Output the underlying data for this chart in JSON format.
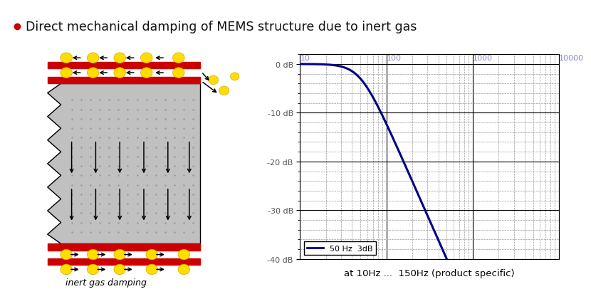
{
  "title": "Direct mechanical damping of MEMS structure due to inert gas",
  "title_color": "#111111",
  "title_fontsize": 12.5,
  "bullet_color": "#cc0000",
  "bg_color": "#ffffff",
  "plot_xlim_log": [
    10,
    10000
  ],
  "plot_ylim": [
    -40,
    2
  ],
  "plot_yticks": [
    0,
    -10,
    -20,
    -30,
    -40
  ],
  "plot_ytick_labels": [
    "0 dB",
    "-10 dB",
    "-20 dB",
    "-30 dB",
    "-40 dB"
  ],
  "plot_xticks": [
    10,
    100,
    1000,
    10000
  ],
  "plot_xtick_labels": [
    "10",
    "100",
    "1000",
    "10000"
  ],
  "curve_color": "#00008B",
  "curve_linewidth": 2.2,
  "legend_label": "50 Hz  3dB",
  "xlabel": "at 10Hz ...  150Hz (product specific)",
  "xlabel_fontsize": 9.5,
  "grid_major_color": "#000000",
  "grid_minor_color": "#999999",
  "red_bar_color": "#cc0000",
  "yellow_circle_color": "#ffdd00",
  "gray_fill_color": "#c0c0c0",
  "gray_hatch_color": "#aaaaaa",
  "inert_gas_label": "inert gas damping"
}
